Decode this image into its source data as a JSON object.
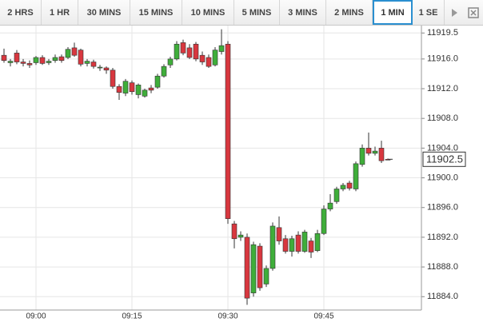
{
  "toolbar": {
    "tabs": [
      "2 HRS",
      "1 HR",
      "30 MINS",
      "15 MINS",
      "10 MINS",
      "5 MINS",
      "3 MINS",
      "2 MINS",
      "1 MIN",
      "1 SE"
    ],
    "selected": 8
  },
  "chart_data": {
    "type": "candlestick",
    "x": [
      "08:55",
      "08:56",
      "08:57",
      "08:58",
      "08:59",
      "09:00",
      "09:01",
      "09:02",
      "09:03",
      "09:04",
      "09:05",
      "09:06",
      "09:07",
      "09:08",
      "09:09",
      "09:10",
      "09:11",
      "09:12",
      "09:13",
      "09:14",
      "09:15",
      "09:16",
      "09:17",
      "09:18",
      "09:19",
      "09:20",
      "09:21",
      "09:22",
      "09:23",
      "09:24",
      "09:25",
      "09:26",
      "09:27",
      "09:28",
      "09:29",
      "09:30",
      "09:31",
      "09:32",
      "09:33",
      "09:34",
      "09:35",
      "09:36",
      "09:37",
      "09:38",
      "09:39",
      "09:40",
      "09:41",
      "09:42",
      "09:43",
      "09:44",
      "09:45",
      "09:46",
      "09:47",
      "09:48",
      "09:49",
      "09:50",
      "09:51",
      "09:52",
      "09:53",
      "09:54",
      "09:55"
    ],
    "open": [
      11916.5,
      11915.5,
      11916.8,
      11915.6,
      11915.4,
      11915.5,
      11916.2,
      11915.5,
      11915.8,
      11916.3,
      11916.2,
      11917.5,
      11917.2,
      11915.4,
      11915.6,
      11914.8,
      11914.8,
      11914.5,
      11912.3,
      11911.4,
      11912.8,
      11911.2,
      11911.0,
      11912.1,
      11912.2,
      11913.7,
      11915.2,
      11916.0,
      11918.2,
      11917.5,
      11918.0,
      11916.5,
      11916.2,
      11915.2,
      11917.0,
      11918.0,
      11893.8,
      11892.0,
      11892.0,
      11884.5,
      11890.8,
      11885.7,
      11887.8,
      11893.3,
      11891.8,
      11890.1,
      11892.3,
      11890.1,
      11891.5,
      11890.2,
      11892.5,
      11895.8,
      11896.8,
      11898.5,
      11899.3,
      11898.5,
      11901.8,
      11904.0,
      11903.3,
      11904.0,
      11902.5
    ],
    "high": [
      11917.4,
      11916.0,
      11917.2,
      11916.0,
      11915.8,
      11916.4,
      11916.5,
      11916.0,
      11916.6,
      11916.6,
      11917.6,
      11918.2,
      11917.4,
      11916.0,
      11915.9,
      11915.2,
      11915.0,
      11914.8,
      11912.6,
      11913.3,
      11913.1,
      11912.7,
      11912.0,
      11912.5,
      11914.0,
      11915.3,
      11916.3,
      11918.4,
      11918.6,
      11918.0,
      11918.3,
      11917.0,
      11916.6,
      11917.6,
      11920.0,
      11918.4,
      11894.2,
      11892.8,
      11892.5,
      11891.4,
      11891.2,
      11888.2,
      11894.0,
      11894.8,
      11892.3,
      11892.2,
      11892.8,
      11893.0,
      11891.9,
      11893.0,
      11896.3,
      11897.8,
      11898.8,
      11899.3,
      11899.6,
      11902.2,
      11904.5,
      11906.1,
      11904.2,
      11905.0,
      11902.6
    ],
    "low": [
      11915.5,
      11915.0,
      11915.3,
      11915.0,
      11914.8,
      11915.2,
      11915.2,
      11915.2,
      11915.5,
      11915.5,
      11916.0,
      11916.3,
      11915.0,
      11915.0,
      11914.7,
      11914.4,
      11914.0,
      11912.0,
      11910.5,
      11911.0,
      11911.2,
      11910.7,
      11910.8,
      11911.4,
      11912.0,
      11913.5,
      11914.8,
      11915.8,
      11916.5,
      11916.0,
      11915.7,
      11915.2,
      11914.8,
      11915.0,
      11916.6,
      11893.8,
      11890.5,
      11891.5,
      11882.9,
      11884.0,
      11884.8,
      11885.3,
      11887.5,
      11891.0,
      11889.8,
      11889.4,
      11889.8,
      11889.9,
      11889.2,
      11890.0,
      11892.3,
      11895.5,
      11896.5,
      11898.2,
      11898.3,
      11898.2,
      11901.5,
      11903.0,
      11903.0,
      11902.0,
      11902.4
    ],
    "close": [
      11915.8,
      11915.7,
      11915.6,
      11915.4,
      11915.2,
      11916.2,
      11915.4,
      11915.7,
      11916.2,
      11915.8,
      11917.3,
      11916.5,
      11915.3,
      11915.7,
      11915.0,
      11914.9,
      11914.5,
      11912.3,
      11911.5,
      11913.0,
      11911.6,
      11912.5,
      11911.8,
      11911.8,
      11913.7,
      11915.0,
      11916.0,
      11918.0,
      11916.8,
      11916.2,
      11916.0,
      11915.6,
      11915.0,
      11917.2,
      11917.8,
      11894.5,
      11891.8,
      11892.3,
      11883.8,
      11891.0,
      11885.2,
      11887.8,
      11893.5,
      11891.5,
      11890.1,
      11891.8,
      11890.1,
      11892.7,
      11890.0,
      11892.5,
      11895.8,
      11896.6,
      11898.5,
      11899.0,
      11898.6,
      11901.9,
      11904.0,
      11903.3,
      11903.6,
      11902.3,
      11902.5
    ],
    "up_color": "#3fae3a",
    "down_color": "#d8373f",
    "ylim": [
      11882.2,
      11920.5
    ],
    "yticks": [
      11919.5,
      {
        "value": 11916,
        "label": "11916.0"
      },
      {
        "value": 11912,
        "label": "11912.0"
      },
      {
        "value": 11908,
        "label": "11908.0"
      },
      {
        "value": 11904,
        "label": "11904.0"
      },
      {
        "value": 11900,
        "label": "11900.0"
      },
      {
        "value": 11896,
        "label": "11896.0"
      },
      {
        "value": 11892,
        "label": "11892.0"
      },
      {
        "value": 11888,
        "label": "11888.0"
      },
      {
        "value": 11884,
        "label": "11884.0"
      }
    ],
    "xticks": [
      "09:00",
      "09:15",
      "09:30",
      "09:45"
    ],
    "last_price": 11902.5,
    "grid": true
  }
}
